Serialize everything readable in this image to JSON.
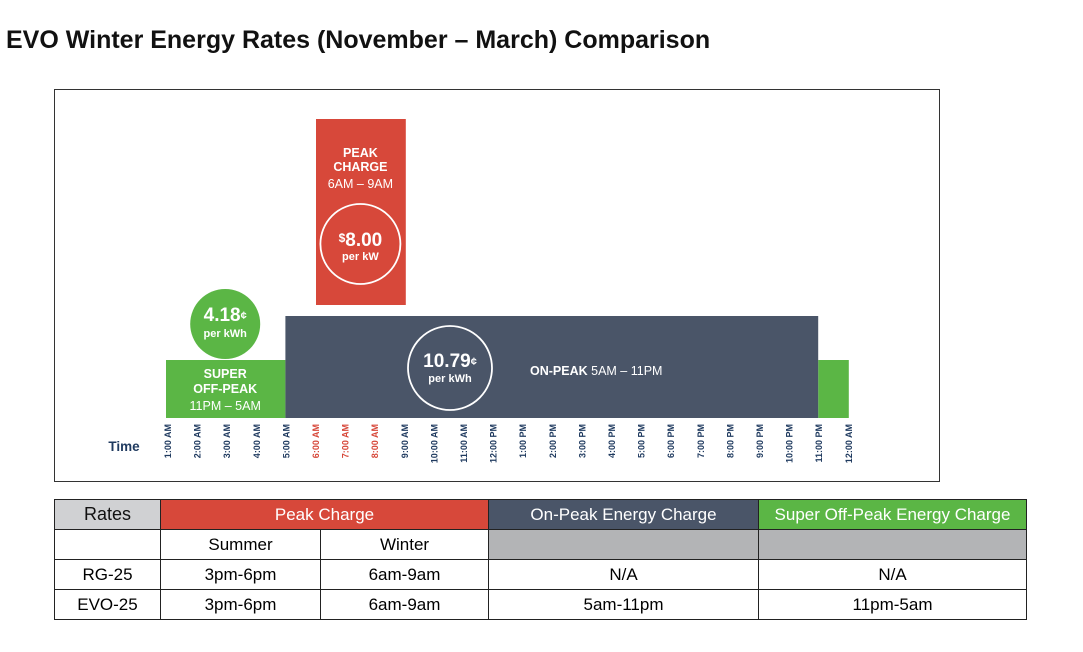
{
  "title": "EVO Winter Energy Rates (November – March) Comparison",
  "colors": {
    "peak": "#d7483a",
    "on_peak": "#4a5568",
    "super_off_peak": "#5bb645",
    "time_label": "#1f3a5f",
    "time_label_peak": "#d7483a"
  },
  "chart_data": {
    "type": "bar",
    "xlabel": "Time",
    "x_ticks": [
      "1:00 AM",
      "2:00 AM",
      "3:00 AM",
      "4:00 AM",
      "5:00 AM",
      "6:00 AM",
      "7:00 AM",
      "8:00 AM",
      "9:00 AM",
      "10:00 AM",
      "11:00 AM",
      "12:00 PM",
      "1:00 PM",
      "2:00 PM",
      "3:00 PM",
      "4:00 PM",
      "5:00 PM",
      "6:00 PM",
      "7:00 PM",
      "8:00 PM",
      "9:00 PM",
      "10:00 PM",
      "11:00 PM",
      "12:00 AM"
    ],
    "highlighted_ticks": [
      "6:00 AM",
      "7:00 AM",
      "8:00 AM"
    ],
    "periods": [
      {
        "key": "super_off_peak",
        "label_lines": [
          "SUPER",
          "OFF-PEAK"
        ],
        "time_range": "11PM – 5AM",
        "start_hour": 1,
        "end_hour": 5,
        "wrap_end": [
          23,
          24
        ],
        "value": "4.18",
        "unit_symbol": "¢",
        "unit": "per kWh"
      },
      {
        "key": "on_peak",
        "label": "ON-PEAK",
        "time_range": "5AM – 11PM",
        "start_hour": 5,
        "end_hour": 23,
        "value": "10.79",
        "unit_symbol": "¢",
        "unit": "per kWh"
      },
      {
        "key": "peak",
        "label_lines": [
          "PEAK",
          "CHARGE"
        ],
        "time_range": "6AM – 9AM",
        "start_hour": 6,
        "end_hour": 9,
        "value": "8.00",
        "unit_symbol": "$",
        "unit": "per kW"
      }
    ]
  },
  "table": {
    "rates_header": "Rates",
    "peak_header": "Peak Charge",
    "on_peak_header": "On-Peak Energy Charge",
    "off_peak_header": "Super Off-Peak Energy Charge",
    "summer_header": "Summer",
    "winter_header": "Winter",
    "rows": [
      {
        "name": "RG-25",
        "summer": "3pm-6pm",
        "winter": "6am-9am",
        "on_peak": "N/A",
        "off_peak": "N/A"
      },
      {
        "name": "EVO-25",
        "summer": "3pm-6pm",
        "winter": "6am-9am",
        "on_peak": "5am-11pm",
        "off_peak": "11pm-5am"
      }
    ]
  }
}
